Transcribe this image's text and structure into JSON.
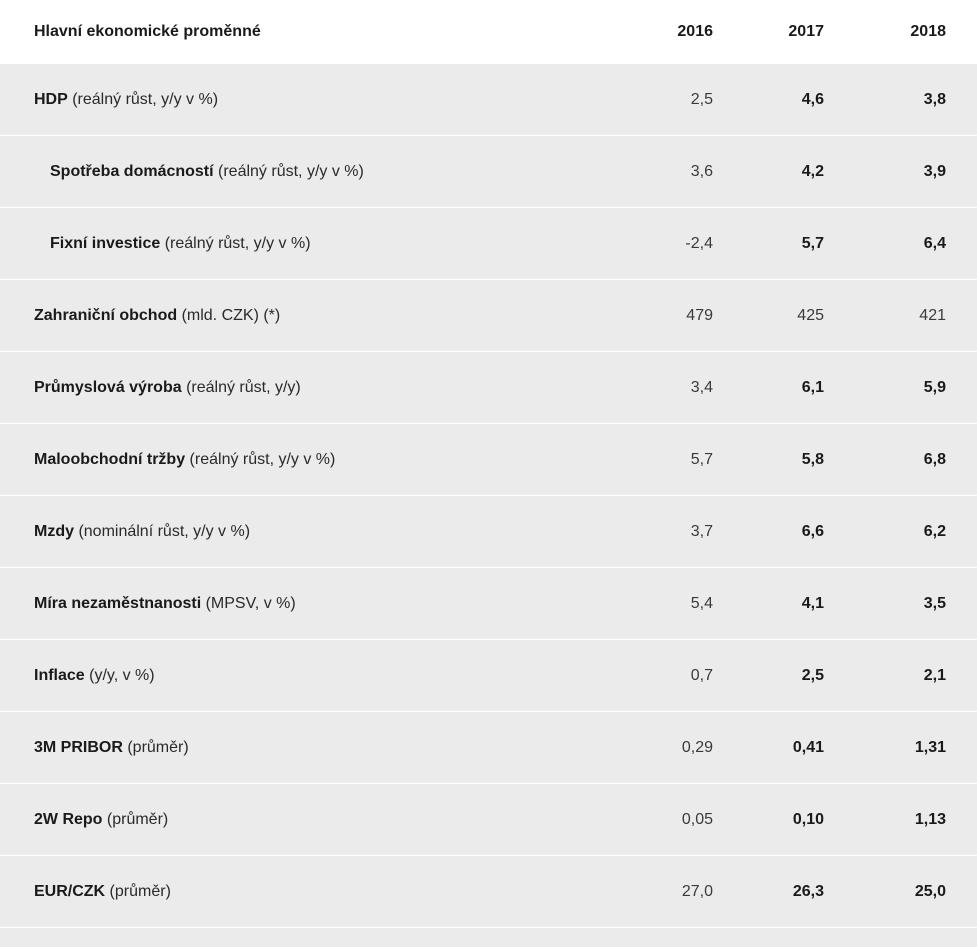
{
  "header": {
    "title": "Hlavní ekonomické proměnné",
    "years": [
      "2016",
      "2017",
      "2018"
    ]
  },
  "rows": [
    {
      "name": "HDP",
      "unit": " (reálný růst, y/y v %)",
      "v2016": "2,5",
      "v2017": "4,6",
      "v2018": "3,8"
    },
    {
      "name": "Spotřeba domácností",
      "unit": " (reálný růst, y/y v %)",
      "v2016": "3,6",
      "v2017": "4,2",
      "v2018": "3,9"
    },
    {
      "name": "Fixní investice",
      "unit": " (reálný růst, y/y v %)",
      "v2016": "-2,4",
      "v2017": "5,7",
      "v2018": "6,4"
    },
    {
      "name": "Zahraniční obchod",
      "unit": " (mld. CZK) (*)",
      "v2016": "479",
      "v2017": "425",
      "v2018": "421"
    },
    {
      "name": "Průmyslová výroba",
      "unit": " (reálný růst, y/y)",
      "v2016": "3,4",
      "v2017": "6,1",
      "v2018": "5,9"
    },
    {
      "name": "Maloobchodní tržby",
      "unit": " (reálný růst, y/y v %)",
      "v2016": "5,7",
      "v2017": "5,8",
      "v2018": "6,8"
    },
    {
      "name": "Mzdy",
      "unit": " (nominální růst, y/y v %)",
      "v2016": "3,7",
      "v2017": "6,6",
      "v2018": "6,2"
    },
    {
      "name": "Míra nezaměstnanosti",
      "unit": " (MPSV, v %)",
      "v2016": "5,4",
      "v2017": "4,1",
      "v2018": "3,5"
    },
    {
      "name": "Inflace",
      "unit": " (y/y, v %)",
      "v2016": "0,7",
      "v2017": "2,5",
      "v2018": "2,1"
    },
    {
      "name": "3M PRIBOR",
      "unit": " (průměr)",
      "v2016": "0,29",
      "v2017": "0,41",
      "v2018": "1,31"
    },
    {
      "name": "2W Repo",
      "unit": " (průměr)",
      "v2016": "0,05",
      "v2017": "0,10",
      "v2018": "1,13"
    },
    {
      "name": "EUR/CZK",
      "unit": " (průměr)",
      "v2016": "27,0",
      "v2017": "26,3",
      "v2018": "25,0"
    }
  ]
}
